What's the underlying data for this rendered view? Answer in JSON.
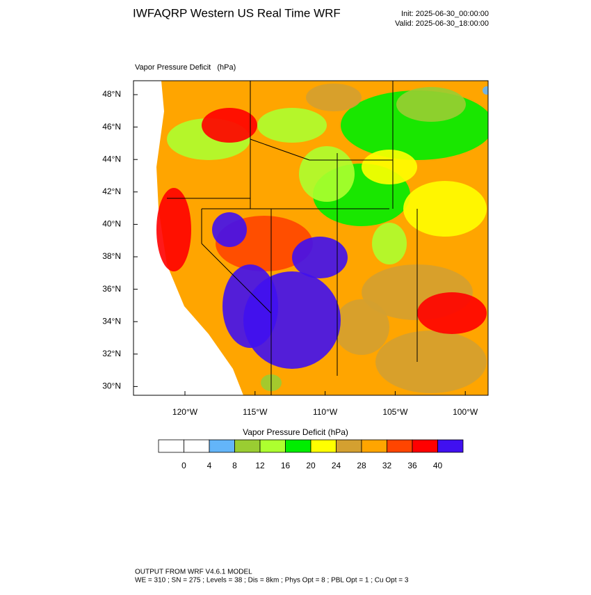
{
  "header": {
    "title": "IWFAQRP Western US Real Time WRF",
    "init": "Init: 2025-06-30_00:00:00",
    "valid": "Valid: 2025-06-30_18:00:00"
  },
  "map": {
    "label": "Vapor Pressure Deficit   (hPa)",
    "lat_labels": [
      "48°N",
      "46°N",
      "44°N",
      "42°N",
      "40°N",
      "38°N",
      "36°N",
      "34°N",
      "32°N",
      "30°N"
    ],
    "lon_labels": [
      "120°W",
      "115°W",
      "110°W",
      "105°W",
      "100°W"
    ]
  },
  "colorbar": {
    "title": "Vapor Pressure Deficit  (hPa)",
    "colors": [
      "#ffffff",
      "#ffffff",
      "#63b5f9",
      "#9acd32",
      "#adff2f",
      "#00ee00",
      "#ffff00",
      "#d4a030",
      "#ffa500",
      "#ff4500",
      "#ff0000",
      "#4010f0"
    ],
    "ticks": [
      0,
      4,
      8,
      12,
      16,
      20,
      24,
      28,
      32,
      36,
      40
    ]
  },
  "footer": {
    "line1": "OUTPUT FROM WRF V4.6.1 MODEL",
    "line2": "WE = 310 ; SN = 275 ; Levels = 38 ; Dis = 8km ; Phys Opt = 8 ; PBL Opt = 1 ; Cu Opt = 3"
  }
}
